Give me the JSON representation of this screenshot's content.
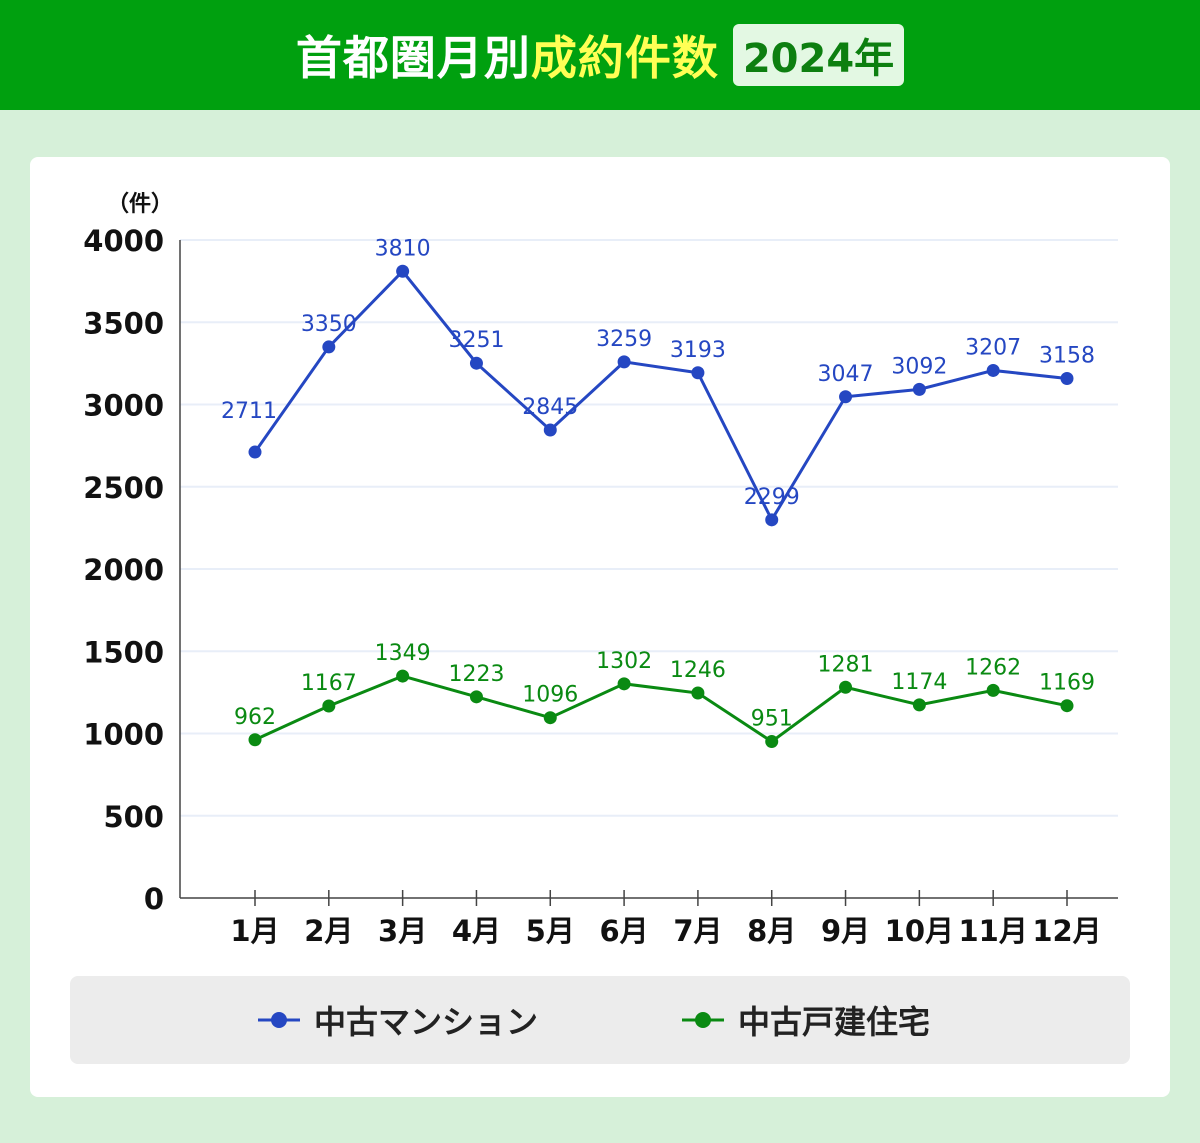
{
  "header": {
    "title_part1": "首都圏月別",
    "title_part2": "成約件数",
    "year_badge": "2024年"
  },
  "chart_data": {
    "type": "line",
    "title": "首都圏月別成約件数 2024年",
    "ylabel": "（件）",
    "xlabel": "",
    "categories": [
      "1月",
      "2月",
      "3月",
      "4月",
      "5月",
      "6月",
      "7月",
      "8月",
      "9月",
      "10月",
      "11月",
      "12月"
    ],
    "ylim": [
      0,
      4000
    ],
    "yticks": [
      0,
      500,
      1000,
      1500,
      2000,
      2500,
      3000,
      3500,
      4000
    ],
    "grid": true,
    "legend_position": "bottom",
    "series": [
      {
        "name": "中古マンション",
        "color": "#2547c2",
        "values": [
          2711,
          3350,
          3810,
          3251,
          2845,
          3259,
          3193,
          2299,
          3047,
          3092,
          3207,
          3158
        ]
      },
      {
        "name": "中古戸建住宅",
        "color": "#0a8a12",
        "values": [
          962,
          1167,
          1349,
          1223,
          1096,
          1302,
          1246,
          951,
          1281,
          1174,
          1262,
          1169
        ]
      }
    ]
  },
  "colors": {
    "header_bg": "#00a00f",
    "title_highlight": "#ffff55",
    "page_bg": "#d6f0d9"
  }
}
